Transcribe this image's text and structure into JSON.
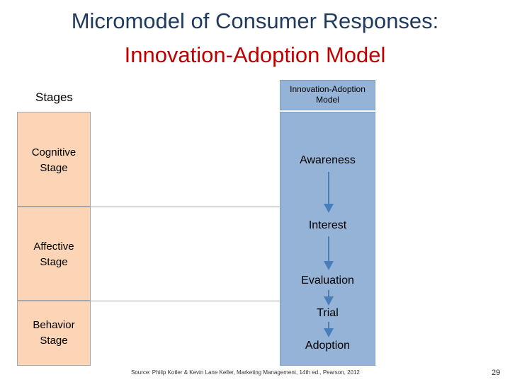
{
  "title": {
    "line1": "Micromodel of Consumer Responses:",
    "line2": "Innovation-Adoption Model"
  },
  "stages": {
    "header": "Stages",
    "items": [
      {
        "line1": "Cognitive",
        "line2": "Stage"
      },
      {
        "line1": "Affective",
        "line2": "Stage"
      },
      {
        "line1": "Behavior",
        "line2": "Stage"
      }
    ]
  },
  "model": {
    "header_line1": "Innovation-Adoption",
    "header_line2": "Model",
    "steps": [
      "Awareness",
      "Interest",
      "Evaluation",
      "Trial",
      "Adoption"
    ]
  },
  "colors": {
    "title_primary": "#1f3a5f",
    "title_accent": "#c00000",
    "stage_fill": "#fbd5b5",
    "model_fill": "#95b3d7",
    "arrow": "#4a7ebb"
  },
  "footer": {
    "source": "Source: Philip Kotler & Kevin Lane Keller, Marketing Management, 14th ed., Pearson, 2012",
    "page_number": "29"
  }
}
